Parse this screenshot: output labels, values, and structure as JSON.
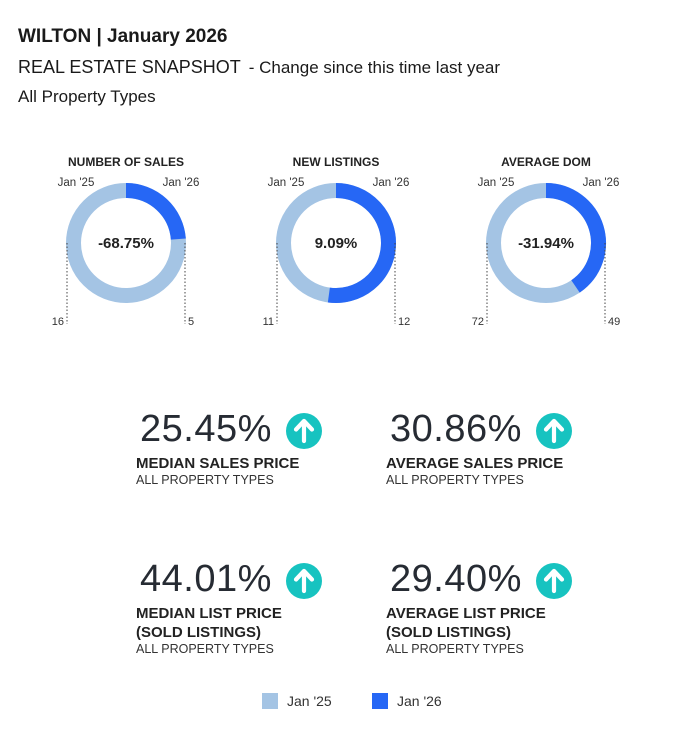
{
  "header": {
    "title": "WILTON | January 2026",
    "subtitle": "REAL ESTATE SNAPSHOT",
    "change_note": "- Change since this time last year",
    "property_types": "All Property Types"
  },
  "colors": {
    "jan25": "#a4c4e4",
    "jan26": "#2667f5",
    "arrow": "#17c3c0"
  },
  "chart_data": [
    {
      "type": "pie",
      "title": "NUMBER OF SALES",
      "categories": [
        "Jan '25",
        "Jan '26"
      ],
      "values": [
        16,
        5
      ],
      "change": "-68.75%"
    },
    {
      "type": "pie",
      "title": "NEW LISTINGS",
      "categories": [
        "Jan '25",
        "Jan '26"
      ],
      "values": [
        11,
        12
      ],
      "change": "9.09%"
    },
    {
      "type": "pie",
      "title": "AVERAGE DOM",
      "categories": [
        "Jan '25",
        "Jan '26"
      ],
      "values": [
        72,
        49
      ],
      "change": "-31.94%"
    }
  ],
  "stats": [
    {
      "pct": "25.45%",
      "label": "MEDIAN SALES PRICE",
      "sublabel": "ALL PROPERTY TYPES",
      "direction": "up"
    },
    {
      "pct": "30.86%",
      "label": "AVERAGE SALES PRICE",
      "sublabel": "ALL PROPERTY TYPES",
      "direction": "up"
    },
    {
      "pct": "44.01%",
      "label": "MEDIAN LIST PRICE",
      "label2": "(SOLD LISTINGS)",
      "sublabel": "ALL PROPERTY TYPES",
      "direction": "up"
    },
    {
      "pct": "29.40%",
      "label": "AVERAGE LIST PRICE",
      "label2": "(SOLD LISTINGS)",
      "sublabel": "ALL PROPERTY TYPES",
      "direction": "up"
    }
  ],
  "legend": {
    "jan25": "Jan '25",
    "jan26": "Jan '26"
  }
}
